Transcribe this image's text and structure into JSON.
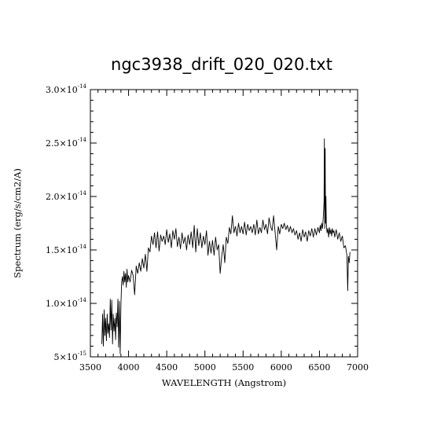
{
  "chart_data": {
    "type": "line",
    "title": "ngc3938_drift_020_020.txt",
    "xlabel": "WAVELENGTH (Angstrom)",
    "ylabel": "Spectrum (erg/s/cm2/A)",
    "xlim": [
      3500,
      7000
    ],
    "ylim": [
      5e-15,
      3e-14
    ],
    "x_ticks": [
      {
        "value": 3500,
        "label": "3500"
      },
      {
        "value": 4000,
        "label": "4000"
      },
      {
        "value": 4500,
        "label": "4500"
      },
      {
        "value": 5000,
        "label": "5000"
      },
      {
        "value": 5500,
        "label": "5500"
      },
      {
        "value": 6000,
        "label": "6000"
      },
      {
        "value": 6500,
        "label": "6500"
      },
      {
        "value": 7000,
        "label": "7000"
      }
    ],
    "y_ticks": [
      {
        "value": 5e-15,
        "mantissa": "5",
        "exponent": "-15"
      },
      {
        "value": 1e-14,
        "mantissa": "1.0",
        "exponent": "-14"
      },
      {
        "value": 1.5e-14,
        "mantissa": "1.5",
        "exponent": "-14"
      },
      {
        "value": 2e-14,
        "mantissa": "2.0",
        "exponent": "-14"
      },
      {
        "value": 2.5e-14,
        "mantissa": "2.5",
        "exponent": "-14"
      },
      {
        "value": 3e-14,
        "mantissa": "3.0",
        "exponent": "-14"
      }
    ],
    "series": [
      {
        "x": [
          3650,
          3660,
          3670,
          3680,
          3690,
          3700,
          3710,
          3720,
          3730,
          3740,
          3750,
          3760,
          3770,
          3780,
          3790,
          3800,
          3810,
          3820,
          3830,
          3840,
          3850,
          3860,
          3870,
          3880,
          3890,
          3900,
          3910,
          3920,
          3930,
          3940,
          3950,
          3960,
          3970,
          3980,
          3990,
          4000,
          4020,
          4040,
          4060,
          4080,
          4100,
          4120,
          4140,
          4160,
          4180,
          4200,
          4220,
          4240,
          4260,
          4280,
          4300,
          4320,
          4340,
          4360,
          4380,
          4400,
          4420,
          4440,
          4460,
          4480,
          4500,
          4520,
          4540,
          4560,
          4580,
          4600,
          4620,
          4640,
          4660,
          4680,
          4700,
          4720,
          4740,
          4760,
          4780,
          4800,
          4820,
          4840,
          4860,
          4880,
          4900,
          4920,
          4940,
          4960,
          4980,
          5000,
          5020,
          5040,
          5060,
          5080,
          5100,
          5120,
          5140,
          5160,
          5180,
          5200,
          5220,
          5240,
          5260,
          5280,
          5300,
          5320,
          5340,
          5360,
          5380,
          5400,
          5420,
          5440,
          5460,
          5480,
          5500,
          5520,
          5540,
          5560,
          5580,
          5600,
          5620,
          5640,
          5660,
          5680,
          5700,
          5720,
          5740,
          5760,
          5780,
          5800,
          5820,
          5840,
          5860,
          5880,
          5900,
          5920,
          5940,
          5960,
          5980,
          6000,
          6020,
          6040,
          6060,
          6080,
          6100,
          6120,
          6140,
          6160,
          6180,
          6200,
          6220,
          6240,
          6260,
          6280,
          6300,
          6320,
          6340,
          6360,
          6380,
          6400,
          6420,
          6440,
          6460,
          6480,
          6500,
          6510,
          6520,
          6530,
          6540,
          6550,
          6560,
          6565,
          6570,
          6575,
          6580,
          6585,
          6590,
          6600,
          6610,
          6620,
          6630,
          6640,
          6650,
          6660,
          6670,
          6680,
          6690,
          6700,
          6720,
          6740,
          6760,
          6780,
          6800,
          6820,
          6840,
          6860,
          6870,
          6880,
          6890,
          6900
        ],
        "y": [
          6.2e-15,
          9e-15,
          6e-15,
          9.4e-15,
          7e-15,
          8.6e-15,
          6.5e-15,
          9e-15,
          7.2e-15,
          8.1e-15,
          6.8e-15,
          1.04e-14,
          7.5e-15,
          1.03e-14,
          6.2e-15,
          9e-15,
          7.4e-15,
          8.6e-15,
          6.6e-15,
          9.1e-15,
          7.8e-15,
          1.04e-14,
          5.9e-15,
          1.02e-14,
          5.3e-15,
          1e-14,
          1.2e-14,
          1.25e-14,
          1.17e-14,
          1.3e-14,
          1.2e-14,
          1.28e-14,
          1.15e-14,
          1.32e-14,
          1.2e-14,
          1.26e-14,
          1.2e-14,
          1.31e-14,
          1.26e-14,
          1.08e-14,
          1.35e-14,
          1.28e-14,
          1.38e-14,
          1.3e-14,
          1.42e-14,
          1.33e-14,
          1.46e-14,
          1.3e-14,
          1.52e-14,
          1.48e-14,
          1.63e-14,
          1.55e-14,
          1.66e-14,
          1.52e-14,
          1.67e-14,
          1.49e-14,
          1.64e-14,
          1.58e-14,
          1.63e-14,
          1.55e-14,
          1.69e-14,
          1.57e-14,
          1.65e-14,
          1.52e-14,
          1.68e-14,
          1.6e-14,
          1.7e-14,
          1.53e-14,
          1.62e-14,
          1.51e-14,
          1.66e-14,
          1.56e-14,
          1.62e-14,
          1.5e-14,
          1.64e-14,
          1.55e-14,
          1.67e-14,
          1.52e-14,
          1.73e-14,
          1.48e-14,
          1.7e-14,
          1.54e-14,
          1.66e-14,
          1.52e-14,
          1.63e-14,
          1.55e-14,
          1.68e-14,
          1.45e-14,
          1.58e-14,
          1.47e-14,
          1.59e-14,
          1.45e-14,
          1.62e-14,
          1.5e-14,
          1.55e-14,
          1.28e-14,
          1.44e-14,
          1.55e-14,
          1.38e-14,
          1.62e-14,
          1.56e-14,
          1.71e-14,
          1.65e-14,
          1.82e-14,
          1.66e-14,
          1.72e-14,
          1.63e-14,
          1.75e-14,
          1.66e-14,
          1.72e-14,
          1.65e-14,
          1.76e-14,
          1.64e-14,
          1.74e-14,
          1.68e-14,
          1.72e-14,
          1.66e-14,
          1.74e-14,
          1.64e-14,
          1.78e-14,
          1.65e-14,
          1.71e-14,
          1.66e-14,
          1.78e-14,
          1.69e-14,
          1.74e-14,
          1.65e-14,
          1.8e-14,
          1.72e-14,
          1.68e-14,
          1.82e-14,
          1.66e-14,
          1.5e-14,
          1.72e-14,
          1.65e-14,
          1.74e-14,
          1.7e-14,
          1.75e-14,
          1.69e-14,
          1.73e-14,
          1.67e-14,
          1.72e-14,
          1.66e-14,
          1.7e-14,
          1.64e-14,
          1.68e-14,
          1.6e-14,
          1.66e-14,
          1.58e-14,
          1.69e-14,
          1.62e-14,
          1.67e-14,
          1.58e-14,
          1.68e-14,
          1.63e-14,
          1.7e-14,
          1.62e-14,
          1.7e-14,
          1.64e-14,
          1.71e-14,
          1.66e-14,
          1.73e-14,
          1.68e-14,
          1.75e-14,
          1.7e-14,
          1.8e-14,
          1.95e-14,
          2.54e-14,
          1.7e-14,
          2.45e-14,
          1.75e-14,
          2e-14,
          1.75e-14,
          1.66e-14,
          1.7e-14,
          1.62e-14,
          1.71e-14,
          1.65e-14,
          1.69e-14,
          1.63e-14,
          1.7e-14,
          1.66e-14,
          1.68e-14,
          1.62e-14,
          1.69e-14,
          1.6e-14,
          1.66e-14,
          1.58e-14,
          1.63e-14,
          1.52e-14,
          1.54e-14,
          1.45e-14,
          1.12e-14,
          1.44e-14,
          1.38e-14,
          1.48e-14
        ]
      }
    ]
  }
}
